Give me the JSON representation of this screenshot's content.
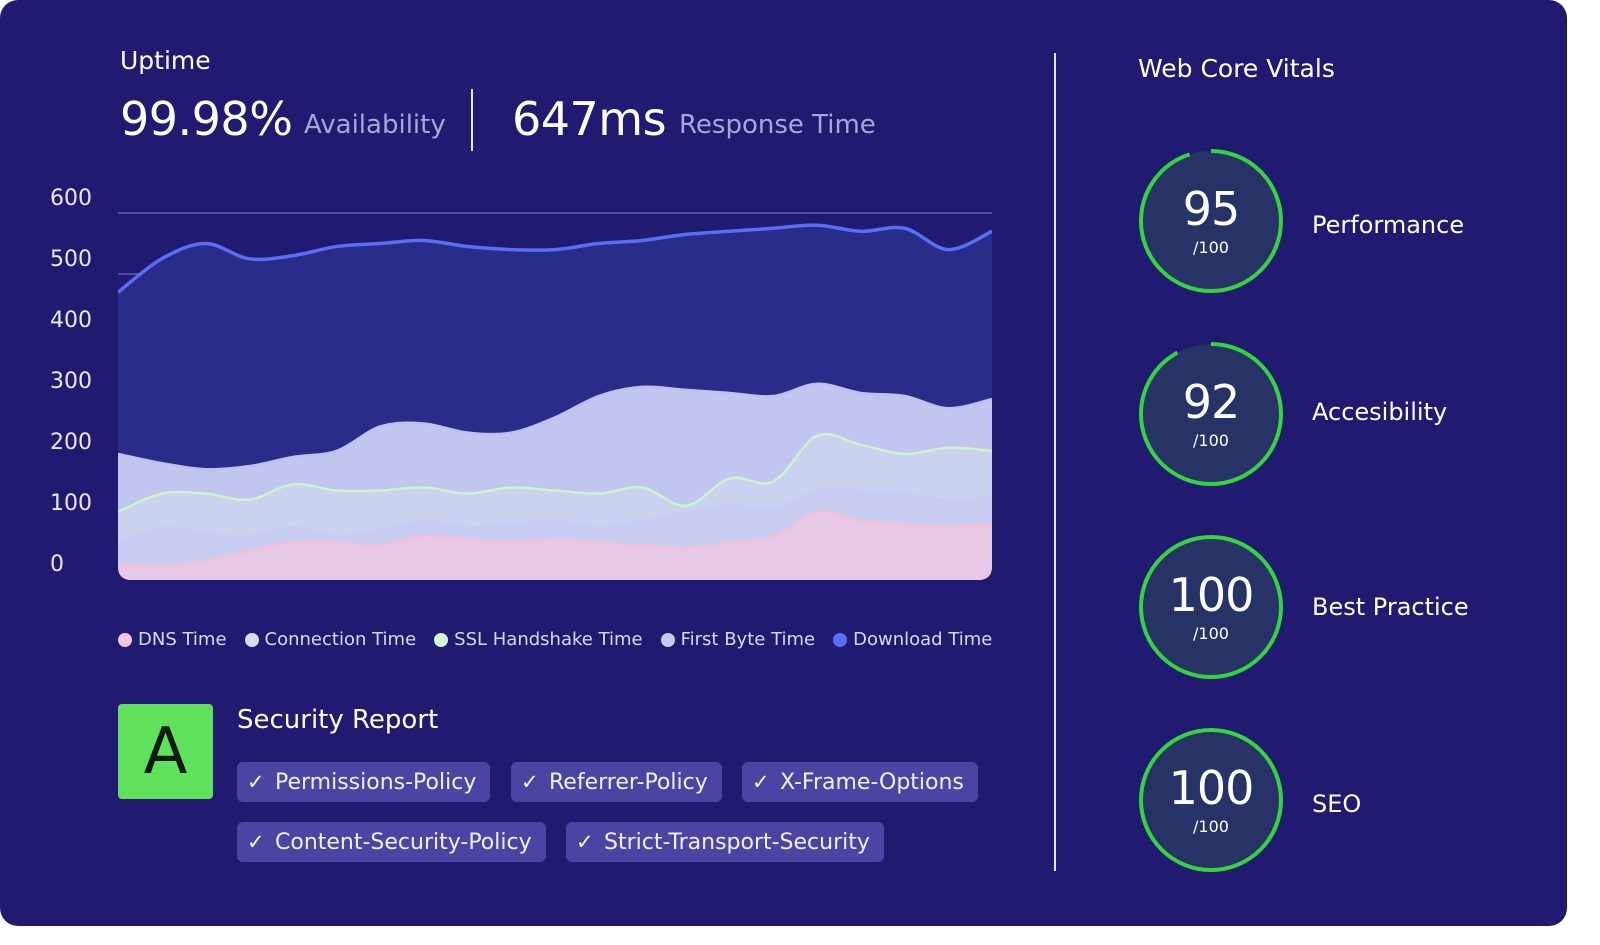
{
  "uptime": {
    "title": "Uptime",
    "availability_value": "99.98%",
    "availability_label": "Availability",
    "response_value": "647ms",
    "response_label": "Response Time"
  },
  "chart_data": {
    "type": "area",
    "stacked": true,
    "yticks": [
      "600",
      "500",
      "400",
      "300",
      "200",
      "100",
      "0"
    ],
    "ylim": [
      0,
      600
    ],
    "grid": true,
    "legend_position": "bottom",
    "x": [
      0,
      1,
      2,
      3,
      4,
      5,
      6,
      7,
      8,
      9,
      10,
      11,
      12,
      13,
      14,
      15,
      16,
      17,
      18,
      19,
      20
    ],
    "series": [
      {
        "name": "DNS Time",
        "color": "#f4c6e0",
        "values": [
          25,
          20,
          30,
          45,
          60,
          60,
          55,
          70,
          65,
          60,
          65,
          60,
          55,
          50,
          60,
          70,
          110,
          95,
          90,
          85,
          90
        ]
      },
      {
        "name": "Connection Time",
        "color": "#d9daf7",
        "values": [
          55,
          85,
          75,
          70,
          85,
          70,
          80,
          95,
          85,
          90,
          95,
          85,
          95,
          110,
          120,
          115,
          145,
          145,
          140,
          130,
          135
        ]
      },
      {
        "name": "SSL Handshake Time",
        "color": "#d4f7d8",
        "values": [
          110,
          140,
          140,
          130,
          155,
          145,
          145,
          150,
          140,
          150,
          145,
          140,
          150,
          120,
          165,
          160,
          235,
          220,
          205,
          215,
          210
        ]
      },
      {
        "name": "First Byte Time",
        "color": "#c7c8f2",
        "values": [
          205,
          190,
          180,
          185,
          200,
          210,
          250,
          255,
          240,
          240,
          265,
          300,
          315,
          310,
          305,
          300,
          320,
          305,
          300,
          280,
          295
        ]
      },
      {
        "name": "Download Time",
        "color": "#5b6cf6",
        "values": [
          470,
          525,
          550,
          525,
          530,
          545,
          550,
          555,
          545,
          540,
          540,
          550,
          555,
          565,
          570,
          575,
          580,
          570,
          575,
          540,
          570
        ]
      }
    ]
  },
  "security": {
    "grade": "A",
    "title": "Security Report",
    "check_glyph": "✓",
    "items": [
      "Permissions-Policy",
      "Referrer-Policy",
      "X-Frame-Options",
      "Content-Security-Policy",
      "Strict-Transport-Security"
    ]
  },
  "vitals": {
    "title": "Web Core Vitals",
    "items": [
      {
        "value": "95",
        "max": "/100",
        "label": "Performance",
        "score": 95
      },
      {
        "value": "92",
        "max": "/100",
        "label": "Accesibility",
        "score": 92
      },
      {
        "value": "100",
        "max": "/100",
        "label": "Best Practice",
        "score": 100
      },
      {
        "value": "100",
        "max": "/100",
        "label": "SEO",
        "score": 100
      }
    ],
    "ring_color": "#35d33c",
    "ring_bg": "#273266"
  },
  "colors": {
    "background": "#201a70",
    "grade_bg": "#5fe15c",
    "chip_bg": "#4a45a3"
  }
}
